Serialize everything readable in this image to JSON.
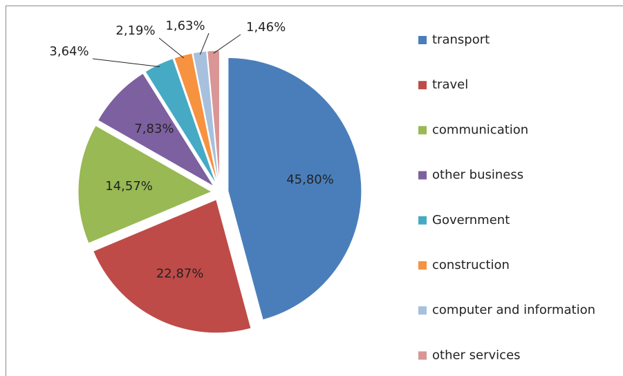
{
  "chart_data": {
    "type": "pie",
    "categories": [
      "transport",
      "travel",
      "communication",
      "other business",
      "Government",
      "construction",
      "computer and information",
      "other services"
    ],
    "values": [
      45.8,
      22.87,
      14.57,
      7.83,
      3.64,
      2.19,
      1.63,
      1.46
    ],
    "value_labels": [
      "45,80%",
      "22,87%",
      "14,57%",
      "7,83%",
      "3,64%",
      "2,19%",
      "1,63%",
      "1,46%"
    ],
    "colors": [
      "#4a7ebb",
      "#be4b48",
      "#98b954",
      "#7d60a0",
      "#46aac5",
      "#f69240",
      "#a7c0de",
      "#d99694"
    ],
    "legend": "right"
  }
}
